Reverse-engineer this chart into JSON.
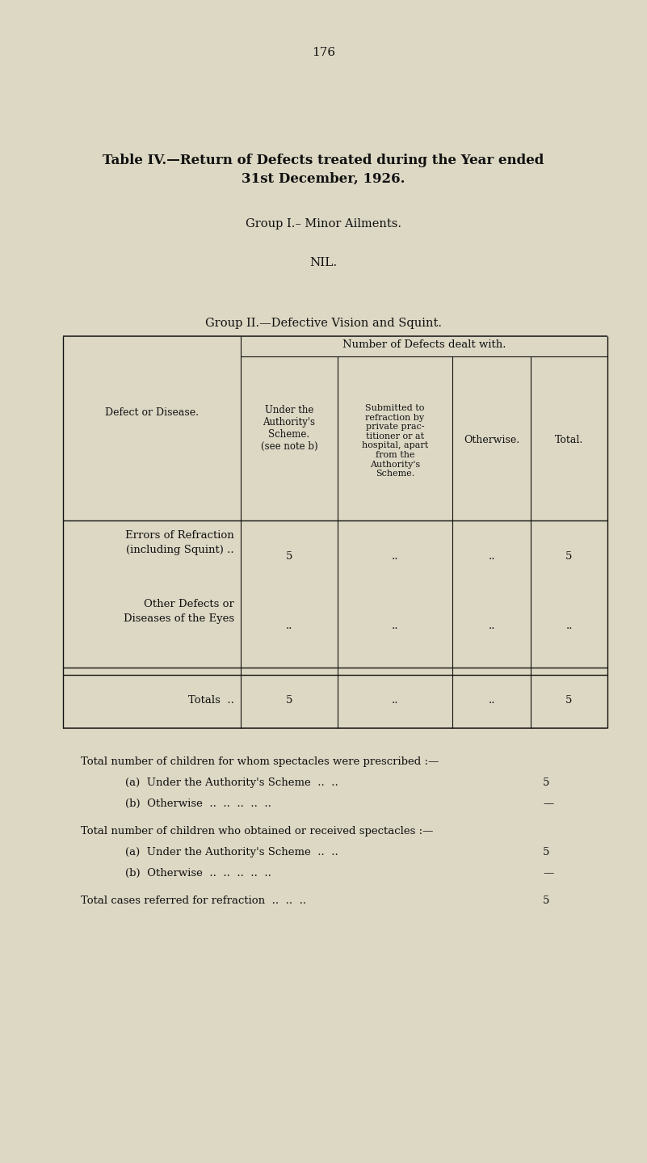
{
  "bg_color": "#ddd8c4",
  "page_number": "176",
  "title_line1": "Table IV.—Return of Defects treated during the Year ended",
  "title_line2": "31st December, 1926.",
  "group1_heading": "Group I.– Minor Ailments.",
  "nil_text": "NIL.",
  "group2_heading": "Group II.—Defective Vision and Squint.",
  "col_header_main": "Number of Defects dealt with.",
  "col0_header": "Defect or Disease.",
  "col1_header": "Under the\nAuthority's\nScheme.\n(see note b)",
  "col2_header": "Submitted to\nrefraction by\nprivate prac-\ntitioner or at\nhospital, apart\nfrom the\nAuthority's\nScheme.",
  "col3_header": "Otherwise.",
  "col4_header": "Total.",
  "row1_label_line1": "Errors of Refraction",
  "row1_label_line2": "(including Squint) ..",
  "row1_col1": "5",
  "row1_col2": "..",
  "row1_col3": "..",
  "row1_col4": "5",
  "row2_label_line1": "Other Defects or",
  "row2_label_line2": "Diseases of the Eyes",
  "row2_col1": "..",
  "row2_col2": "..",
  "row2_col3": "..",
  "row2_col4": "..",
  "totals_label": "Totals",
  "totals_col1": "5",
  "totals_col2": "..",
  "totals_col3": "..",
  "totals_col4": "5",
  "footnote1": "Total number of children for whom spectacles were prescribed :—",
  "footnote1a_label": "(a)  Under the Authority's Scheme",
  "footnote1a_value": "5",
  "footnote1b_label": "(b)  Otherwise",
  "footnote1b_value": "—",
  "footnote2": "Total number of children who obtained or received spectacles :—",
  "footnote2a_label": "(a)  Under the Authority's Scheme",
  "footnote2a_value": "5",
  "footnote2b_label": "(b)  Otherwise",
  "footnote2b_value": "—",
  "footnote3_label": "Total cases referred for refraction",
  "footnote3_value": "5"
}
